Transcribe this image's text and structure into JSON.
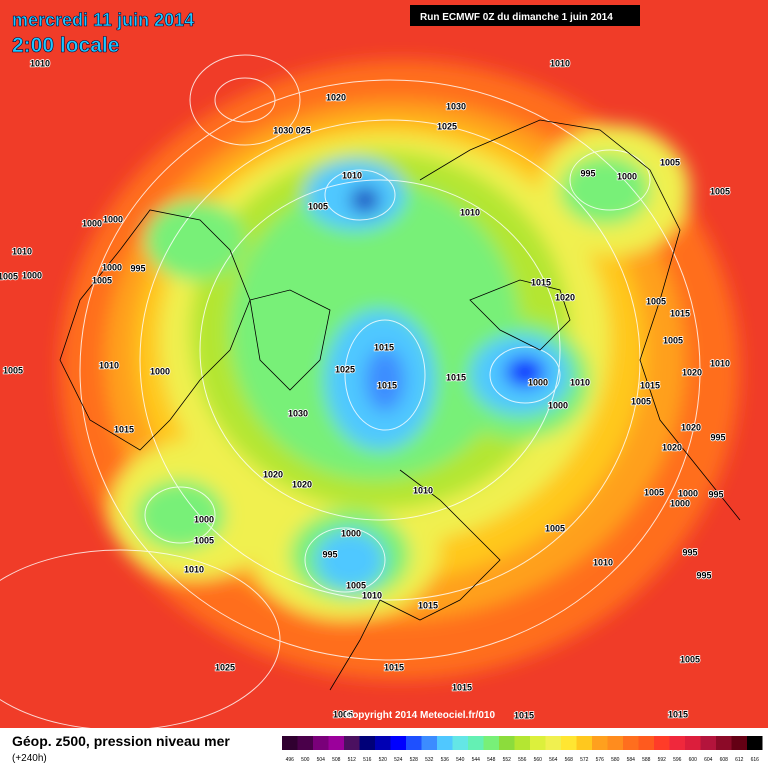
{
  "header": {
    "date": "mercredi 11 juin 2014",
    "time": "2:00 locale",
    "run": "Run ECMWF 0Z du dimanche 1 juin 2014"
  },
  "footer": {
    "title": "Géop. z500, pression niveau mer",
    "lead": "(+240h)",
    "copyright": "Copyright 2014 Meteociel.fr/010"
  },
  "legend": {
    "values": [
      496,
      500,
      504,
      508,
      512,
      516,
      520,
      524,
      528,
      532,
      536,
      540,
      544,
      548,
      552,
      556,
      560,
      564,
      568,
      572,
      576,
      580,
      584,
      588,
      592,
      596,
      600,
      604,
      608,
      612,
      616
    ],
    "colors": [
      "#300030",
      "#4a004a",
      "#7a007a",
      "#9b009b",
      "#4b1060",
      "#000078",
      "#0000b4",
      "#0000ff",
      "#1e50ff",
      "#3c8cff",
      "#50c8ff",
      "#64e6e6",
      "#64f0b4",
      "#78f078",
      "#8cdc3c",
      "#b4e632",
      "#dcf03c",
      "#f0f050",
      "#ffe632",
      "#ffc81e",
      "#ffa01e",
      "#ff8c1e",
      "#ff6e1e",
      "#ff5a1e",
      "#ff3c28",
      "#f0283c",
      "#dc1e3c",
      "#b4143c",
      "#8c0a28",
      "#640014",
      "#000000"
    ]
  },
  "isobar_labels": [
    "1010",
    "1010",
    "1020",
    "1030",
    "1025",
    "1030 025",
    "1010",
    "1005",
    "1010",
    "995",
    "1000",
    "1005",
    "1005",
    "1000",
    "1000",
    "1010",
    "1000",
    "995",
    "1005",
    "1000",
    "1005",
    "1015",
    "1020",
    "1005",
    "1015",
    "1005",
    "1010",
    "1000",
    "1015",
    "1025",
    "1015",
    "1015",
    "1000",
    "1010",
    "1000",
    "1030",
    "1015",
    "1020",
    "1020",
    "1010",
    "1005",
    "1000",
    "1005",
    "1000",
    "995",
    "1005",
    "1010",
    "1010",
    "1015",
    "1010",
    "1025",
    "1015",
    "1015",
    "1005",
    "1015",
    "1015",
    "1005",
    "995",
    "995",
    "1005",
    "1000",
    "995",
    "1000",
    "995",
    "1020",
    "1020",
    "1015",
    "1020",
    "1010",
    "1005",
    "1005"
  ]
}
